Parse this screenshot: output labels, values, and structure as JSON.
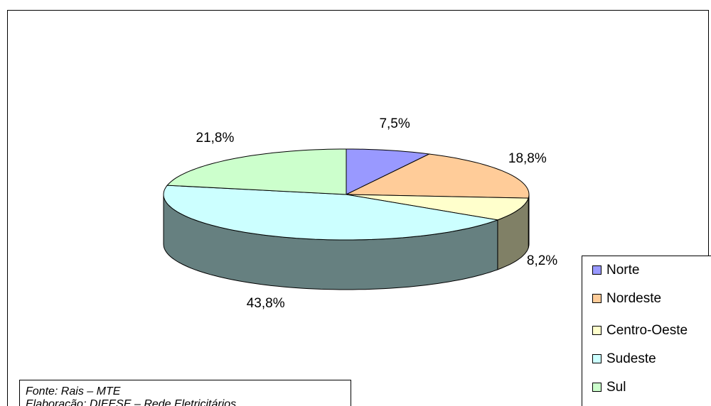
{
  "chart_data": {
    "type": "pie3d",
    "categories": [
      "Norte",
      "Nordeste",
      "Centro-Oeste",
      "Sudeste",
      "Sul"
    ],
    "values": [
      7.5,
      18.8,
      8.2,
      43.8,
      21.8
    ],
    "value_labels": [
      "7,5%",
      "18,8%",
      "8,2%",
      "43,8%",
      "21,8%"
    ],
    "colors": [
      "#9999ff",
      "#ffcc99",
      "#ffffcc",
      "#ccffff",
      "#ccffcc"
    ],
    "side_colors": [
      "#4d4d80",
      "#806650",
      "#808066",
      "#668080",
      "#668066"
    ],
    "legend": "bottom-right",
    "source": [
      "Fonte: Rais – MTE",
      "Elaboração: DIEESE – Rede Eletricitários"
    ]
  }
}
